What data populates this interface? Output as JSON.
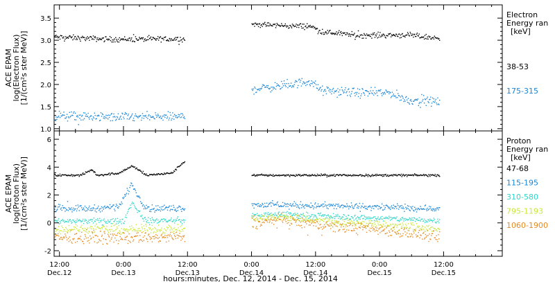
{
  "chart_data": {
    "type": "scatter",
    "xlabel": "hours:minutes, Dec. 12, 2014 - Dec. 15, 2014",
    "x_range_hours": [
      -1,
      83
    ],
    "x_ticks": [
      {
        "hour": 0,
        "time": "12:00",
        "date": "Dec.12"
      },
      {
        "hour": 12,
        "time": "0:00",
        "date": "Dec.13"
      },
      {
        "hour": 24,
        "time": "12:00",
        "date": "Dec.13"
      },
      {
        "hour": 36,
        "time": "0:00",
        "date": "Dec.14"
      },
      {
        "hour": 48,
        "time": "12:00",
        "date": "Dec.14"
      },
      {
        "hour": 60,
        "time": "0:00",
        "date": "Dec.15"
      },
      {
        "hour": 72,
        "time": "12:00",
        "date": "Dec.15"
      }
    ],
    "data_gap_hours": [
      23.5,
      36
    ],
    "panels": [
      {
        "id": "electron",
        "ylabel_lines": [
          "ACE EPAM",
          "log(Electron Flux)",
          "[1/(cm²s ster MeV)]"
        ],
        "ylim": [
          0.95,
          3.8
        ],
        "yticks": [
          "1.0",
          "1.5",
          "2.0",
          "2.5",
          "3.0",
          "3.5"
        ],
        "ytick_values": [
          1.0,
          1.5,
          2.0,
          2.5,
          3.0,
          3.5
        ],
        "legend_title": [
          "Electron",
          "Energy ran",
          "[keV]"
        ],
        "series": [
          {
            "name": "38-53",
            "color": "#000000",
            "noise": 0.03,
            "knots": [
              [
                -1,
                3.08
              ],
              [
                10,
                3.03
              ],
              [
                23.5,
                3.04
              ],
              [
                36,
                3.37
              ],
              [
                44,
                3.33
              ],
              [
                47,
                3.33
              ],
              [
                49,
                3.2
              ],
              [
                56,
                3.12
              ],
              [
                65,
                3.13
              ],
              [
                71,
                3.05
              ]
            ]
          },
          {
            "name": "175-315",
            "color": "#1a86d6",
            "noise": 0.05,
            "knots": [
              [
                -1,
                1.3
              ],
              [
                10,
                1.27
              ],
              [
                23.5,
                1.28
              ],
              [
                36,
                1.9
              ],
              [
                43,
                2.0
              ],
              [
                47,
                2.09
              ],
              [
                49,
                1.87
              ],
              [
                56,
                1.82
              ],
              [
                62,
                1.82
              ],
              [
                65,
                1.66
              ],
              [
                71,
                1.62
              ]
            ]
          }
        ]
      },
      {
        "id": "proton",
        "ylabel_lines": [
          "ACE EPAM",
          "log(Proton Flux)",
          "[1/(cm²s ster MeV)]"
        ],
        "ylim": [
          -2.4,
          6.6
        ],
        "yticks": [
          "-2",
          "0",
          "2",
          "4",
          "6"
        ],
        "ytick_values": [
          -2,
          0,
          2,
          4,
          6
        ],
        "legend_title": [
          "Proton",
          "Energy ran",
          "[keV]"
        ],
        "series": [
          {
            "name": "47-68",
            "color": "#000000",
            "noise": 0.04,
            "knots": [
              [
                -1,
                3.45
              ],
              [
                4,
                3.45
              ],
              [
                6,
                3.85
              ],
              [
                7,
                3.45
              ],
              [
                11,
                3.6
              ],
              [
                13.5,
                4.1
              ],
              [
                15,
                3.8
              ],
              [
                16,
                3.45
              ],
              [
                21,
                3.6
              ],
              [
                23.5,
                4.5
              ],
              [
                36,
                3.45
              ],
              [
                71,
                3.45
              ]
            ]
          },
          {
            "name": "115-195",
            "color": "#1a86d6",
            "noise": 0.12,
            "knots": [
              [
                -1,
                1.1
              ],
              [
                6,
                1.05
              ],
              [
                11,
                1.2
              ],
              [
                13.5,
                2.8
              ],
              [
                15.5,
                1.4
              ],
              [
                17,
                1.05
              ],
              [
                23.5,
                1.1
              ],
              [
                36,
                1.35
              ],
              [
                50,
                1.25
              ],
              [
                71,
                1.05
              ]
            ]
          },
          {
            "name": "310-580",
            "color": "#2ed6c8",
            "noise": 0.1,
            "knots": [
              [
                -1,
                0.15
              ],
              [
                12,
                0.15
              ],
              [
                13.5,
                1.5
              ],
              [
                16,
                0.2
              ],
              [
                23.5,
                0.2
              ],
              [
                36,
                0.55
              ],
              [
                42,
                0.65
              ],
              [
                50,
                0.5
              ],
              [
                71,
                0.2
              ]
            ]
          },
          {
            "name": "795-1193",
            "color": "#c7e836",
            "noise": 0.15,
            "knots": [
              [
                -1,
                -0.4
              ],
              [
                12,
                -0.45
              ],
              [
                23.5,
                -0.4
              ],
              [
                36,
                0.3
              ],
              [
                42,
                0.45
              ],
              [
                50,
                0.15
              ],
              [
                71,
                -0.4
              ]
            ]
          },
          {
            "name": "1060-1900",
            "color": "#e58a1f",
            "noise": 0.2,
            "knots": [
              [
                -1,
                -1.0
              ],
              [
                12,
                -1.05
              ],
              [
                23.5,
                -1.0
              ],
              [
                36,
                0.0
              ],
              [
                41,
                0.25
              ],
              [
                50,
                -0.2
              ],
              [
                62,
                -0.5
              ],
              [
                71,
                -1.05
              ]
            ]
          }
        ]
      }
    ]
  }
}
